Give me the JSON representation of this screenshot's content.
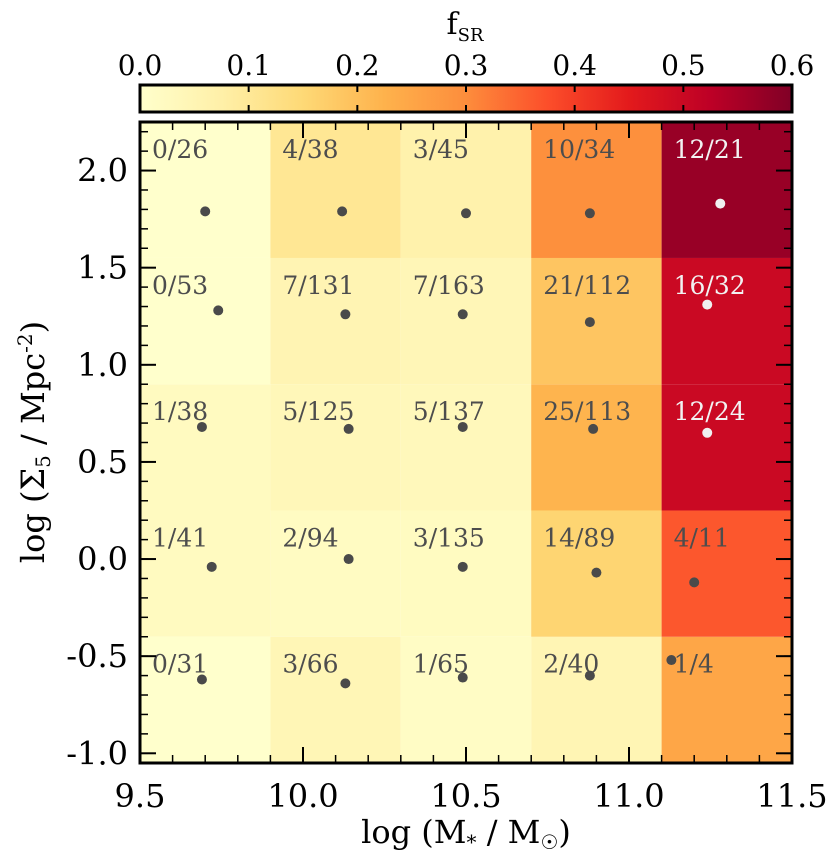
{
  "chart_data": {
    "type": "heatmap",
    "title": "",
    "colorbar": {
      "label_main": "f",
      "label_sub": "SR",
      "range": [
        0.0,
        0.6
      ],
      "ticks": [
        "0.0",
        "0.1",
        "0.2",
        "0.3",
        "0.4",
        "0.5",
        "0.6"
      ],
      "tick_values": [
        0.0,
        0.1,
        0.2,
        0.3,
        0.4,
        0.5,
        0.6
      ],
      "colormap": [
        "#ffffcc",
        "#fff0a8",
        "#fed976",
        "#feb24c",
        "#fd8d3c",
        "#fc4e2a",
        "#e31a1c",
        "#bd0026",
        "#800026"
      ]
    },
    "xlabel": {
      "prefix": "log (M",
      "sub": "*",
      "middle": " / M",
      "sun": "☉",
      "suffix": ")"
    },
    "ylabel": {
      "prefix": "log (Σ",
      "sub": "5",
      "middle": " / Mpc",
      "sup": "-2",
      "suffix": ")"
    },
    "xlim": [
      9.5,
      11.5
    ],
    "ylim": [
      -1.05,
      2.25
    ],
    "x_ticks": [
      "9.5",
      "10.0",
      "10.5",
      "11.0",
      "11.5"
    ],
    "x_tick_values": [
      9.5,
      10.0,
      10.5,
      11.0,
      11.5
    ],
    "y_ticks": [
      "2.0",
      "1.5",
      "1.0",
      "0.5",
      "0.0",
      "-0.5",
      "-1.0"
    ],
    "y_tick_values": [
      2.0,
      1.5,
      1.0,
      0.5,
      0.0,
      -0.5,
      -1.0
    ],
    "x_bin_edges": [
      9.5,
      9.9,
      10.3,
      10.7,
      11.1,
      11.5
    ],
    "y_bin_edges": [
      -1.05,
      -0.4,
      0.25,
      0.9,
      1.55,
      2.25
    ],
    "cells": [
      {
        "label": "0/31",
        "fraction": 0.0,
        "point": [
          9.69,
          -0.62
        ],
        "light": false
      },
      {
        "label": "3/66",
        "fraction": 0.045,
        "point": [
          10.13,
          -0.64
        ],
        "light": false
      },
      {
        "label": "1/65",
        "fraction": 0.015,
        "point": [
          10.49,
          -0.61
        ],
        "light": false
      },
      {
        "label": "2/40",
        "fraction": 0.05,
        "point": [
          10.88,
          -0.6
        ],
        "light": false
      },
      {
        "label": "1/4",
        "fraction": 0.25,
        "point": [
          11.13,
          -0.52
        ],
        "light": false
      },
      {
        "label": "1/41",
        "fraction": 0.024,
        "point": [
          9.72,
          -0.04
        ],
        "light": false
      },
      {
        "label": "2/94",
        "fraction": 0.021,
        "point": [
          10.14,
          0.0
        ],
        "light": false
      },
      {
        "label": "3/135",
        "fraction": 0.022,
        "point": [
          10.49,
          -0.04
        ],
        "light": false
      },
      {
        "label": "14/89",
        "fraction": 0.157,
        "point": [
          10.9,
          -0.07
        ],
        "light": false
      },
      {
        "label": "4/11",
        "fraction": 0.364,
        "point": [
          11.2,
          -0.12
        ],
        "light": false
      },
      {
        "label": "1/38",
        "fraction": 0.026,
        "point": [
          9.69,
          0.68
        ],
        "light": false
      },
      {
        "label": "5/125",
        "fraction": 0.04,
        "point": [
          10.14,
          0.67
        ],
        "light": false
      },
      {
        "label": "5/137",
        "fraction": 0.036,
        "point": [
          10.49,
          0.68
        ],
        "light": false
      },
      {
        "label": "25/113",
        "fraction": 0.221,
        "point": [
          10.89,
          0.67
        ],
        "light": false
      },
      {
        "label": "12/24",
        "fraction": 0.5,
        "point": [
          11.24,
          0.65
        ],
        "light": true
      },
      {
        "label": "0/53",
        "fraction": 0.0,
        "point": [
          9.74,
          1.28
        ],
        "light": false
      },
      {
        "label": "7/131",
        "fraction": 0.053,
        "point": [
          10.13,
          1.26
        ],
        "light": false
      },
      {
        "label": "7/163",
        "fraction": 0.043,
        "point": [
          10.49,
          1.26
        ],
        "light": false
      },
      {
        "label": "21/112",
        "fraction": 0.188,
        "point": [
          10.88,
          1.22
        ],
        "light": false
      },
      {
        "label": "16/32",
        "fraction": 0.5,
        "point": [
          11.24,
          1.31
        ],
        "light": true
      },
      {
        "label": "0/26",
        "fraction": 0.0,
        "point": [
          9.7,
          1.79
        ],
        "light": false
      },
      {
        "label": "4/38",
        "fraction": 0.105,
        "point": [
          10.12,
          1.79
        ],
        "light": false
      },
      {
        "label": "3/45",
        "fraction": 0.067,
        "point": [
          10.5,
          1.78
        ],
        "light": false
      },
      {
        "label": "10/34",
        "fraction": 0.294,
        "point": [
          10.88,
          1.78
        ],
        "light": false
      },
      {
        "label": "12/21",
        "fraction": 0.571,
        "point": [
          11.28,
          1.83
        ],
        "light": true
      }
    ]
  }
}
